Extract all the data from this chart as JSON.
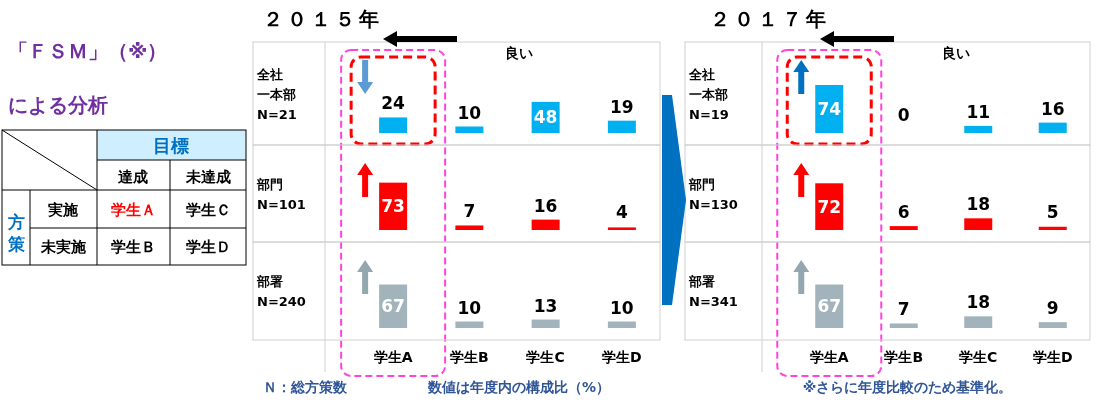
{
  "chart_data": [
    {
      "type": "other",
      "title": "「ＦＳＭ」（※）",
      "subtitle": "による分析",
      "annotations": [
        "目標",
        "達成",
        "未達成",
        "方策",
        "実施",
        "学生Ａ",
        "学生Ｃ",
        "未実施",
        "学生Ｂ",
        "学生Ｄ"
      ]
    },
    {
      "type": "bar",
      "title": "２０１５年",
      "ylabel": "全社一本部\nN=21",
      "categories": [
        "学生A",
        "学生B",
        "学生C",
        "学生D"
      ],
      "values": [
        24,
        10,
        48,
        19
      ],
      "color": "#00b0f0",
      "data_labels": true,
      "tick_labels": false,
      "annotations": [
        "良い"
      ]
    },
    {
      "type": "bar",
      "ylabel": "部門\nN=101",
      "categories": [
        "学生A",
        "学生B",
        "学生C",
        "学生D"
      ],
      "values": [
        73,
        7,
        16,
        4
      ],
      "color": "#ff0000",
      "data_labels": true,
      "tick_labels": false
    },
    {
      "type": "bar",
      "ylabel": "部署\nN=240",
      "categories": [
        "学生A",
        "学生B",
        "学生C",
        "学生D"
      ],
      "values": [
        67,
        10,
        13,
        10
      ],
      "color": "#a3b3bb",
      "data_labels": true,
      "tick_labels": "x",
      "annotations": [
        "Ｎ：総方策数",
        "数値は年度内の構成比（%）"
      ]
    },
    {
      "type": "bar",
      "title": "２０１７年",
      "ylabel": "全社一本部\nN=19",
      "categories": [
        "学生A",
        "学生B",
        "学生C",
        "学生D"
      ],
      "values": [
        74,
        0,
        11,
        16
      ],
      "color": "#00b0f0",
      "data_labels": true,
      "tick_labels": false,
      "annotations": [
        "良い"
      ]
    },
    {
      "type": "bar",
      "ylabel": "部門\nN=130",
      "categories": [
        "学生A",
        "学生B",
        "学生C",
        "学生D"
      ],
      "values": [
        72,
        6,
        18,
        5
      ],
      "color": "#ff0000",
      "data_labels": true,
      "tick_labels": false
    },
    {
      "type": "bar",
      "ylabel": "部署\nN=341",
      "categories": [
        "学生A",
        "学生B",
        "学生C",
        "学生D"
      ],
      "values": [
        67,
        7,
        18,
        9
      ],
      "color": "#a3b3bb",
      "data_labels": true,
      "tick_labels": "x",
      "annotations": [
        "※さらに年度比較のため基準化。"
      ]
    }
  ]
}
